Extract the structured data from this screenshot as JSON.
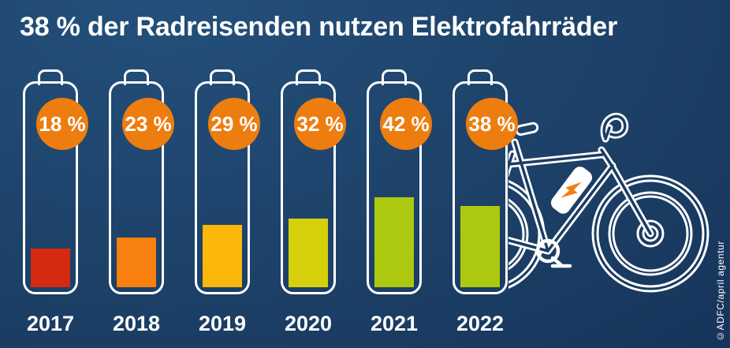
{
  "credit": "©ADFC/april agentur",
  "chart_data": {
    "type": "bar",
    "title": "38 % der Radreisenden nutzen Elektrofahrräder",
    "categories": [
      "2017",
      "2018",
      "2019",
      "2020",
      "2021",
      "2022"
    ],
    "values": [
      18,
      23,
      29,
      32,
      42,
      38
    ],
    "value_labels": [
      "18 %",
      "23 %",
      "29 %",
      "32 %",
      "42 %",
      "38 %"
    ],
    "unit": "%",
    "ylim": [
      0,
      100
    ],
    "grid": false,
    "legend": "none",
    "style": "battery-gauge bars with orange value badges, year labels below",
    "bar_colors": [
      "#d52a10",
      "#f8800f",
      "#fbb80a",
      "#d5d00b",
      "#adc90f",
      "#adc90f"
    ],
    "badge_color": "#ee7d10",
    "outline_color": "#ffffff"
  },
  "illustration": {
    "name": "e-bike outline with battery pack and lightning bolt",
    "line_color": "#ffffff",
    "bolt_color": "#f08010"
  },
  "background": {
    "from": "#23507b",
    "via": "#1d4168",
    "to": "#142f55"
  },
  "text_color": "#ffffff"
}
